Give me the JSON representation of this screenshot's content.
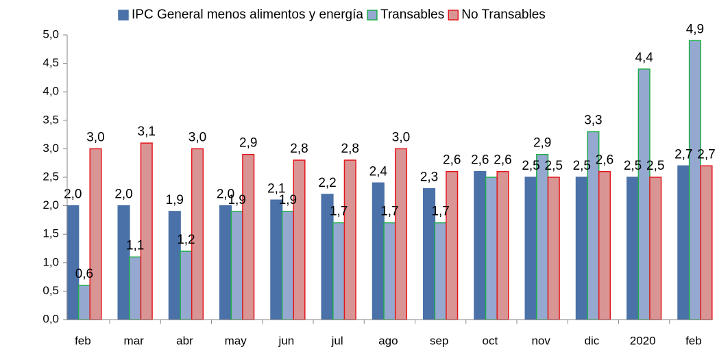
{
  "chart_data": {
    "type": "bar",
    "categories": [
      "feb",
      "mar",
      "abr",
      "may",
      "jun",
      "jul",
      "ago",
      "sep",
      "oct",
      "nov",
      "dic",
      "2020",
      "feb"
    ],
    "series": [
      {
        "name": "IPC General menos alimentos y energía",
        "color": "#4a71a8",
        "edgecolor": "#4a71a8",
        "values": [
          2.0,
          2.0,
          1.9,
          2.0,
          2.1,
          2.2,
          2.4,
          2.3,
          2.6,
          2.5,
          2.5,
          2.5,
          2.7
        ],
        "value_labels": [
          "2,0",
          "2,0",
          "1,9",
          "2,0",
          "2,1",
          "2,2",
          "2,4",
          "2,3",
          "2,6",
          "2,5",
          "2,5",
          "2,5",
          "2,7"
        ]
      },
      {
        "name": "Transables",
        "color": "#95a9d0",
        "edgecolor": "#1fae4a",
        "values": [
          0.6,
          1.1,
          1.2,
          1.9,
          1.9,
          1.7,
          1.7,
          1.7,
          2.5,
          2.9,
          3.3,
          4.4,
          4.9
        ],
        "value_labels": [
          "0,6",
          "1,1",
          "1,2",
          "1,9",
          "1,9",
          "1,7",
          "1,7",
          "1,7",
          null,
          "2,9",
          "3,3",
          "4,4",
          "4,9"
        ]
      },
      {
        "name": "No Transables",
        "color": "#d99594",
        "edgecolor": "#e3161c",
        "values": [
          3.0,
          3.1,
          3.0,
          2.9,
          2.8,
          2.8,
          3.0,
          2.6,
          2.6,
          2.5,
          2.6,
          2.5,
          2.7
        ],
        "value_labels": [
          "3,0",
          "3,1",
          "3,0",
          "2,9",
          "2,8",
          "2,8",
          "3,0",
          "2,6",
          "2,6",
          "2,5",
          "2,6",
          "2,5",
          "2,7"
        ]
      }
    ],
    "ylim": [
      0,
      5
    ],
    "yticks": [
      {
        "value": 0,
        "label": "0,0"
      },
      {
        "value": 0.5,
        "label": "0,5"
      },
      {
        "value": 1,
        "label": "1,0"
      },
      {
        "value": 1.5,
        "label": "1,5"
      },
      {
        "value": 2,
        "label": "2,0"
      },
      {
        "value": 2.5,
        "label": "2,5"
      },
      {
        "value": 3,
        "label": "3,0"
      },
      {
        "value": 3.5,
        "label": "3,5"
      },
      {
        "value": 4,
        "label": "4,0"
      },
      {
        "value": 4.5,
        "label": "4,5"
      },
      {
        "value": 5,
        "label": "5,0"
      }
    ],
    "legend": "top"
  }
}
